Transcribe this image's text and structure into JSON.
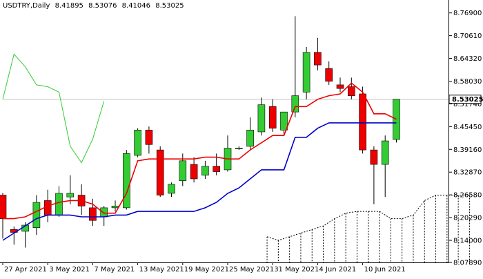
{
  "header": {
    "symbol": "USDTRY,Daily",
    "open": "8.41895",
    "high": "8.53076",
    "low": "8.41046",
    "close": "8.53025"
  },
  "chart_data": {
    "type": "candlestick",
    "title": "USDTRY,Daily",
    "ylim": [
      8.0789,
      8.799
    ],
    "y_ticks": [
      "8.76900",
      "8.70610",
      "8.64320",
      "8.58030",
      "8.51740",
      "8.45450",
      "8.39160",
      "8.32870",
      "8.26580",
      "8.20290",
      "8.14000",
      "8.07890"
    ],
    "x_ticks": [
      {
        "label": "27 Apr 2021",
        "index": 0
      },
      {
        "label": "3 May 2021",
        "index": 4
      },
      {
        "label": "7 May 2021",
        "index": 8
      },
      {
        "label": "13 May 2021",
        "index": 12
      },
      {
        "label": "19 May 2021",
        "index": 16
      },
      {
        "label": "25 May 2021",
        "index": 20
      },
      {
        "label": "31 May 2021",
        "index": 24
      },
      {
        "label": "4 Jun 2021",
        "index": 28
      },
      {
        "label": "10 Jun 2021",
        "index": 32
      }
    ],
    "current_price": "8.53025",
    "grid": false,
    "colors": {
      "bull": "#33cc33",
      "bear": "#ee0000",
      "fast_line": "#ee0000",
      "slow_line": "#0000cc",
      "lagging_line": "#33cc33",
      "cloud": "#000000",
      "price_line": "#c0c0c0"
    },
    "candles": [
      {
        "o": 8.265,
        "h": 8.271,
        "l": 8.145,
        "c": 8.2
      },
      {
        "o": 8.17,
        "h": 8.178,
        "l": 8.128,
        "c": 8.162
      },
      {
        "o": 8.165,
        "h": 8.19,
        "l": 8.12,
        "c": 8.182
      },
      {
        "o": 8.175,
        "h": 8.265,
        "l": 8.155,
        "c": 8.245
      },
      {
        "o": 8.25,
        "h": 8.28,
        "l": 8.19,
        "c": 8.21
      },
      {
        "o": 8.21,
        "h": 8.29,
        "l": 8.205,
        "c": 8.27
      },
      {
        "o": 8.26,
        "h": 8.32,
        "l": 8.24,
        "c": 8.27
      },
      {
        "o": 8.265,
        "h": 8.295,
        "l": 8.21,
        "c": 8.235
      },
      {
        "o": 8.23,
        "h": 8.255,
        "l": 8.18,
        "c": 8.195
      },
      {
        "o": 8.205,
        "h": 8.235,
        "l": 8.18,
        "c": 8.23
      },
      {
        "o": 8.23,
        "h": 8.25,
        "l": 8.22,
        "c": 8.235
      },
      {
        "o": 8.23,
        "h": 8.39,
        "l": 8.225,
        "c": 8.38
      },
      {
        "o": 8.375,
        "h": 8.45,
        "l": 8.37,
        "c": 8.445
      },
      {
        "o": 8.445,
        "h": 8.455,
        "l": 8.38,
        "c": 8.405
      },
      {
        "o": 8.39,
        "h": 8.4,
        "l": 8.26,
        "c": 8.265
      },
      {
        "o": 8.27,
        "h": 8.3,
        "l": 8.26,
        "c": 8.295
      },
      {
        "o": 8.305,
        "h": 8.38,
        "l": 8.29,
        "c": 8.36
      },
      {
        "o": 8.35,
        "h": 8.37,
        "l": 8.3,
        "c": 8.31
      },
      {
        "o": 8.32,
        "h": 8.36,
        "l": 8.31,
        "c": 8.345
      },
      {
        "o": 8.345,
        "h": 8.38,
        "l": 8.32,
        "c": 8.33
      },
      {
        "o": 8.335,
        "h": 8.43,
        "l": 8.33,
        "c": 8.395
      },
      {
        "o": 8.395,
        "h": 8.4,
        "l": 8.39,
        "c": 8.395
      },
      {
        "o": 8.4,
        "h": 8.48,
        "l": 8.39,
        "c": 8.445
      },
      {
        "o": 8.44,
        "h": 8.535,
        "l": 8.43,
        "c": 8.515
      },
      {
        "o": 8.51,
        "h": 8.53,
        "l": 8.44,
        "c": 8.45
      },
      {
        "o": 8.445,
        "h": 8.495,
        "l": 8.43,
        "c": 8.495
      },
      {
        "o": 8.495,
        "h": 8.76,
        "l": 8.48,
        "c": 8.54
      },
      {
        "o": 8.55,
        "h": 8.675,
        "l": 8.53,
        "c": 8.66
      },
      {
        "o": 8.66,
        "h": 8.7,
        "l": 8.61,
        "c": 8.625
      },
      {
        "o": 8.615,
        "h": 8.635,
        "l": 8.57,
        "c": 8.58
      },
      {
        "o": 8.57,
        "h": 8.59,
        "l": 8.55,
        "c": 8.56
      },
      {
        "o": 8.565,
        "h": 8.59,
        "l": 8.53,
        "c": 8.54
      },
      {
        "o": 8.545,
        "h": 8.565,
        "l": 8.38,
        "c": 8.39
      },
      {
        "o": 8.39,
        "h": 8.4,
        "l": 8.24,
        "c": 8.35
      },
      {
        "o": 8.35,
        "h": 8.43,
        "l": 8.26,
        "c": 8.415
      },
      {
        "o": 8.4189,
        "h": 8.5308,
        "l": 8.4105,
        "c": 8.5303
      }
    ],
    "fast_line": [
      8.2,
      8.2,
      8.205,
      8.22,
      8.235,
      8.245,
      8.25,
      8.25,
      8.24,
      8.215,
      8.215,
      8.27,
      8.36,
      8.365,
      8.365,
      8.365,
      8.365,
      8.365,
      8.37,
      8.37,
      8.365,
      8.365,
      8.39,
      8.41,
      8.43,
      8.43,
      8.51,
      8.51,
      8.53,
      8.54,
      8.545,
      8.575,
      8.55,
      8.49,
      8.49,
      8.475
    ],
    "slow_line": [
      8.14,
      8.16,
      8.18,
      8.2,
      8.21,
      8.21,
      8.21,
      8.205,
      8.205,
      8.205,
      8.21,
      8.21,
      8.22,
      8.22,
      8.22,
      8.22,
      8.22,
      8.22,
      8.23,
      8.245,
      8.27,
      8.285,
      8.31,
      8.335,
      8.335,
      8.335,
      8.425,
      8.425,
      8.45,
      8.465,
      8.465,
      8.465,
      8.465,
      8.465,
      8.465,
      8.465
    ],
    "lagging_line": [
      {
        "i": 0,
        "v": 8.53
      },
      {
        "i": 1,
        "v": 8.655
      },
      {
        "i": 2,
        "v": 8.62
      },
      {
        "i": 3,
        "v": 8.57
      },
      {
        "i": 4,
        "v": 8.565
      },
      {
        "i": 5,
        "v": 8.55
      },
      {
        "i": 6,
        "v": 8.4
      },
      {
        "i": 7,
        "v": 8.355
      },
      {
        "i": 8,
        "v": 8.42
      },
      {
        "i": 9,
        "v": 8.525
      }
    ],
    "cloud": [
      {
        "i": 23.5,
        "top": 8.15,
        "bottom": 8.0789
      },
      {
        "i": 24.5,
        "top": 8.14,
        "bottom": 8.0789
      },
      {
        "i": 25.5,
        "top": 8.15,
        "bottom": 8.0789
      },
      {
        "i": 26.5,
        "top": 8.16,
        "bottom": 8.0789
      },
      {
        "i": 27.5,
        "top": 8.17,
        "bottom": 8.0789
      },
      {
        "i": 28.5,
        "top": 8.18,
        "bottom": 8.0789
      },
      {
        "i": 29.5,
        "top": 8.2,
        "bottom": 8.0789
      },
      {
        "i": 30.5,
        "top": 8.215,
        "bottom": 8.0789
      },
      {
        "i": 31.5,
        "top": 8.22,
        "bottom": 8.0789
      },
      {
        "i": 32.5,
        "top": 8.22,
        "bottom": 8.0789
      },
      {
        "i": 33.5,
        "top": 8.22,
        "bottom": 8.0789
      },
      {
        "i": 34.5,
        "top": 8.2,
        "bottom": 8.0789
      },
      {
        "i": 35.5,
        "top": 8.2,
        "bottom": 8.0789
      },
      {
        "i": 36.5,
        "top": 8.21,
        "bottom": 8.0789
      },
      {
        "i": 37.5,
        "top": 8.25,
        "bottom": 8.0789
      },
      {
        "i": 38.5,
        "top": 8.265,
        "bottom": 8.0789
      },
      {
        "i": 39.5,
        "top": 8.265,
        "bottom": 8.0789
      },
      {
        "i": 40.5,
        "top": 8.265,
        "bottom": 8.0789
      },
      {
        "i": 41.5,
        "top": 8.265,
        "bottom": 8.0789
      }
    ]
  }
}
